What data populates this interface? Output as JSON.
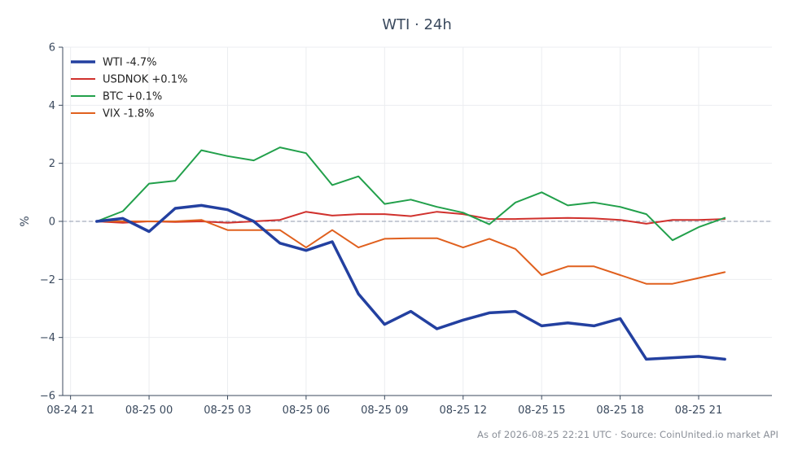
{
  "title": "WTI · 24h",
  "footer": "As of 2026-08-25 22:21 UTC · Source: CoinUnited.io market API",
  "chart_data": {
    "type": "line",
    "title": "WTI · 24h",
    "xlabel": "",
    "ylabel": "%",
    "ylim": [
      -6,
      6
    ],
    "yticks": [
      -6,
      -4,
      -2,
      0,
      2,
      4,
      6
    ],
    "ytick_labels": [
      "−6",
      "−4",
      "−2",
      "0",
      "2",
      "4",
      "6"
    ],
    "xlim": [
      -0.3,
      26.8
    ],
    "xticks": [
      0,
      3,
      6,
      9,
      12,
      15,
      18,
      21,
      24
    ],
    "xtick_labels": [
      "08-24 21",
      "08-25 00",
      "08-25 03",
      "08-25 06",
      "08-25 09",
      "08-25 12",
      "08-25 15",
      "08-25 18",
      "08-25 21"
    ],
    "x": [
      1,
      2,
      3,
      4,
      5,
      6,
      7,
      8,
      9,
      10,
      11,
      12,
      13,
      14,
      15,
      16,
      17,
      18,
      19,
      20,
      21,
      22,
      23,
      24,
      25
    ],
    "x_labels": [
      "08-24 22:00",
      "08-24 23:00",
      "08-25 00:00",
      "08-25 01:00",
      "08-25 02:00",
      "08-25 03:00",
      "08-25 04:00",
      "08-25 05:00",
      "08-25 06:00",
      "08-25 07:00",
      "08-25 08:00",
      "08-25 09:00",
      "08-25 10:00",
      "08-25 11:00",
      "08-25 12:00",
      "08-25 13:00",
      "08-25 14:00",
      "08-25 15:00",
      "08-25 16:00",
      "08-25 17:00",
      "08-25 18:00",
      "08-25 19:00",
      "08-25 20:00",
      "08-25 21:00",
      "08-25 22:00"
    ],
    "zero_line": true,
    "grid": true,
    "legend_position": "top-left",
    "series": [
      {
        "name": "WTI -4.7%",
        "color": "#2340a0",
        "width": 3.5,
        "values": [
          0.0,
          0.1,
          -0.35,
          0.45,
          0.55,
          0.4,
          0.0,
          -0.75,
          -1.0,
          -0.7,
          -2.5,
          -3.55,
          -3.1,
          -3.7,
          -3.4,
          -3.15,
          -3.1,
          -3.6,
          -3.5,
          -3.6,
          -3.35,
          -4.75,
          -4.7,
          -4.65,
          -4.75
        ]
      },
      {
        "name": "USDNOK +0.1%",
        "color": "#d0312d",
        "width": 2,
        "values": [
          0.0,
          -0.05,
          0.0,
          -0.02,
          0.0,
          -0.05,
          0.0,
          0.05,
          0.33,
          0.2,
          0.25,
          0.25,
          0.18,
          0.33,
          0.25,
          0.08,
          0.08,
          0.1,
          0.12,
          0.1,
          0.05,
          -0.08,
          0.05,
          0.05,
          0.08
        ]
      },
      {
        "name": "BTC +0.1%",
        "color": "#22a04b",
        "width": 2,
        "values": [
          0.0,
          0.35,
          1.3,
          1.4,
          2.45,
          2.25,
          2.1,
          2.55,
          2.35,
          1.25,
          1.55,
          0.6,
          0.75,
          0.5,
          0.3,
          -0.1,
          0.65,
          1.0,
          0.55,
          0.65,
          0.5,
          0.25,
          -0.65,
          -0.2,
          0.12
        ]
      },
      {
        "name": "VIX -1.8%",
        "color": "#e0601e",
        "width": 2,
        "values": [
          0.0,
          0.0,
          0.0,
          0.0,
          0.05,
          -0.3,
          -0.3,
          -0.3,
          -0.9,
          -0.3,
          -0.9,
          -0.6,
          -0.58,
          -0.58,
          -0.9,
          -0.6,
          -0.95,
          -1.85,
          -1.55,
          -1.55,
          -1.85,
          -2.15,
          -2.15,
          -1.95,
          -1.75
        ]
      }
    ]
  }
}
